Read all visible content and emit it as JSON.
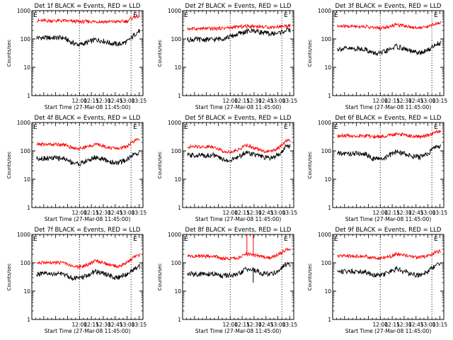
{
  "figure": {
    "background": "#ffffff",
    "event_color": "#000000",
    "lld_color": "#ff0000",
    "grid_style": "dotted vertical lines at 12:00 and 13:05 (plus 12:08 in upper-middle panels)"
  },
  "chart_data": [
    {
      "type": "line",
      "title": "Det 1f BLACK = Events, RED = LLD",
      "ylabel": "Counts/sec",
      "xlabel": "Start Time (27-Mar-08 11:45:00)",
      "corner_mark": "E",
      "yscale": "log",
      "ylim": [
        1,
        1000
      ],
      "xlim_minutes": [
        -50,
        90
      ],
      "x_ticks": [
        "12:00",
        "12:15",
        "12:30",
        "12:45",
        "13:00",
        "13:15"
      ],
      "y_ticks": [
        "1",
        "10",
        "100",
        "1000"
      ],
      "vlines": [
        "12:00",
        "13:05"
      ],
      "series": [
        {
          "name": "Events",
          "color": "#000000",
          "x": [
            "11:40",
            "11:50",
            "12:00",
            "12:10",
            "12:20",
            "12:30",
            "12:40",
            "12:50",
            "13:00",
            "13:05",
            "13:10",
            "13:15",
            "13:20"
          ],
          "values": [
            110,
            75,
            62,
            75,
            95,
            85,
            70,
            65,
            80,
            105,
            150,
            190,
            170
          ]
        },
        {
          "name": "LLD",
          "color": "#ff0000",
          "x": [
            "11:40",
            "11:50",
            "12:00",
            "12:10",
            "12:20",
            "12:30",
            "12:40",
            "12:50",
            "13:00",
            "13:05",
            "13:10",
            "13:15",
            "13:20"
          ],
          "values": [
            440,
            420,
            410,
            410,
            410,
            410,
            405,
            410,
            420,
            520,
            600,
            620,
            540
          ]
        }
      ]
    },
    {
      "type": "line",
      "title": "Det 2f BLACK = Events, RED = LLD",
      "ylabel": "Counts/sec",
      "xlabel": "Start Time (27-Mar-08 11:45:00)",
      "corner_mark": "E",
      "yscale": "log",
      "ylim": [
        1,
        1000
      ],
      "xlim_minutes": [
        -50,
        90
      ],
      "x_ticks": [
        "12:00",
        "12:15",
        "12:30",
        "12:45",
        "13:00",
        "13:15"
      ],
      "y_ticks": [
        "1",
        "10",
        "100",
        "1000"
      ],
      "vlines": [
        "12:00",
        "13:05"
      ],
      "series": [
        {
          "name": "Events",
          "color": "#000000",
          "x": [
            "11:40",
            "11:50",
            "12:00",
            "12:10",
            "12:20",
            "12:30",
            "12:40",
            "12:50",
            "13:00",
            "13:10",
            "13:20"
          ],
          "values": [
            95,
            105,
            120,
            150,
            180,
            200,
            170,
            150,
            160,
            200,
            210
          ]
        },
        {
          "name": "LLD",
          "color": "#ff0000",
          "x": [
            "11:40",
            "11:50",
            "12:00",
            "12:10",
            "12:20",
            "12:30",
            "12:40",
            "12:50",
            "13:00",
            "13:10",
            "13:20"
          ],
          "values": [
            230,
            240,
            250,
            270,
            280,
            285,
            270,
            260,
            270,
            290,
            300
          ]
        }
      ]
    },
    {
      "type": "line",
      "title": "Det 3f BLACK = Events, RED = LLD",
      "ylabel": "Counts/sec",
      "xlabel": "Start Time (27-Mar-08 11:45:00)",
      "corner_mark": "E",
      "yscale": "log",
      "ylim": [
        1,
        1000
      ],
      "xlim_minutes": [
        -50,
        90
      ],
      "x_ticks": [
        "12:00",
        "12:15",
        "12:30",
        "12:45",
        "13:00",
        "13:15"
      ],
      "y_ticks": [
        "1",
        "10",
        "100",
        "1000"
      ],
      "vlines": [
        "12:00",
        "13:05"
      ],
      "series": [
        {
          "name": "Events",
          "color": "#000000",
          "x": [
            "11:40",
            "11:50",
            "12:00",
            "12:10",
            "12:20",
            "12:30",
            "12:40",
            "12:50",
            "13:00",
            "13:10",
            "13:20"
          ],
          "values": [
            45,
            32,
            30,
            40,
            55,
            45,
            35,
            32,
            40,
            65,
            80
          ]
        },
        {
          "name": "LLD",
          "color": "#ff0000",
          "x": [
            "11:40",
            "11:50",
            "12:00",
            "12:10",
            "12:20",
            "12:30",
            "12:40",
            "12:50",
            "13:00",
            "13:10",
            "13:20"
          ],
          "values": [
            280,
            250,
            240,
            270,
            320,
            300,
            260,
            250,
            270,
            350,
            390
          ]
        }
      ]
    },
    {
      "type": "line",
      "title": "Det 4f BLACK = Events, RED = LLD",
      "ylabel": "Counts/sec",
      "xlabel": "Start Time (27-Mar-08 11:45:00)",
      "corner_mark": "E",
      "yscale": "log",
      "ylim": [
        1,
        1000
      ],
      "xlim_minutes": [
        -50,
        90
      ],
      "x_ticks": [
        "12:00",
        "12:15",
        "12:30",
        "12:45",
        "13:00",
        "13:15"
      ],
      "y_ticks": [
        "1",
        "10",
        "100",
        "1000"
      ],
      "vlines": [
        "12:00",
        "13:05"
      ],
      "series": [
        {
          "name": "Events",
          "color": "#000000",
          "x": [
            "11:40",
            "11:50",
            "12:00",
            "12:10",
            "12:20",
            "12:30",
            "12:40",
            "12:50",
            "13:00",
            "13:10",
            "13:20"
          ],
          "values": [
            55,
            40,
            35,
            45,
            60,
            50,
            40,
            38,
            50,
            80,
            95
          ]
        },
        {
          "name": "LLD",
          "color": "#ff0000",
          "x": [
            "11:40",
            "11:50",
            "12:00",
            "12:10",
            "12:20",
            "12:30",
            "12:40",
            "12:50",
            "13:00",
            "13:10",
            "13:20"
          ],
          "values": [
            170,
            130,
            120,
            140,
            170,
            150,
            125,
            120,
            150,
            230,
            290
          ]
        }
      ]
    },
    {
      "type": "line",
      "title": "Det 5f BLACK = Events, RED = LLD",
      "ylabel": "Counts/sec",
      "xlabel": "Start Time (27-Mar-08 11:45:00)",
      "corner_mark": "E",
      "yscale": "log",
      "ylim": [
        1,
        1000
      ],
      "xlim_minutes": [
        -50,
        90
      ],
      "x_ticks": [
        "12:00",
        "12:15",
        "12:30",
        "12:45",
        "13:00",
        "13:15"
      ],
      "y_ticks": [
        "1",
        "10",
        "100",
        "1000"
      ],
      "vlines": [
        "12:00",
        "13:05"
      ],
      "series": [
        {
          "name": "Events",
          "color": "#000000",
          "x": [
            "11:40",
            "11:50",
            "12:00",
            "12:10",
            "12:20",
            "12:30",
            "12:40",
            "12:50",
            "13:00",
            "13:10",
            "13:20"
          ],
          "values": [
            70,
            50,
            45,
            60,
            90,
            75,
            60,
            55,
            70,
            140,
            170
          ]
        },
        {
          "name": "LLD",
          "color": "#ff0000",
          "x": [
            "11:40",
            "11:50",
            "12:00",
            "12:10",
            "12:20",
            "12:30",
            "12:40",
            "12:50",
            "13:00",
            "13:10",
            "13:20"
          ],
          "values": [
            140,
            100,
            90,
            110,
            160,
            130,
            100,
            95,
            120,
            220,
            260
          ]
        }
      ]
    },
    {
      "type": "line",
      "title": "Det 6f BLACK = Events, RED = LLD",
      "ylabel": "Counts/sec",
      "xlabel": "Start Time (27-Mar-08 11:45:00)",
      "corner_mark": "E",
      "yscale": "log",
      "ylim": [
        1,
        1000
      ],
      "xlim_minutes": [
        -50,
        90
      ],
      "x_ticks": [
        "12:00",
        "12:15",
        "12:30",
        "12:45",
        "13:00",
        "13:15"
      ],
      "y_ticks": [
        "1",
        "10",
        "100",
        "1000"
      ],
      "vlines": [
        "12:00",
        "13:05"
      ],
      "series": [
        {
          "name": "Events",
          "color": "#000000",
          "x": [
            "11:40",
            "11:50",
            "12:00",
            "12:10",
            "12:20",
            "12:30",
            "12:40",
            "12:50",
            "13:00",
            "13:10",
            "13:20"
          ],
          "values": [
            80,
            55,
            50,
            65,
            95,
            80,
            65,
            60,
            80,
            140,
            150
          ]
        },
        {
          "name": "LLD",
          "color": "#ff0000",
          "x": [
            "11:40",
            "11:50",
            "12:00",
            "12:10",
            "12:20",
            "12:30",
            "12:40",
            "12:50",
            "13:00",
            "13:10",
            "13:20"
          ],
          "values": [
            340,
            320,
            320,
            340,
            400,
            370,
            330,
            320,
            350,
            460,
            530
          ]
        }
      ]
    },
    {
      "type": "line",
      "title": "Det 7f BLACK = Events, RED = LLD",
      "ylabel": "Counts/sec",
      "xlabel": "Start Time (27-Mar-08 11:45:00)",
      "corner_mark": "E",
      "yscale": "log",
      "ylim": [
        1,
        1000
      ],
      "xlim_minutes": [
        -50,
        90
      ],
      "x_ticks": [
        "12:00",
        "12:15",
        "12:30",
        "12:45",
        "13:00",
        "13:15"
      ],
      "y_ticks": [
        "1",
        "10",
        "100",
        "1000"
      ],
      "vlines": [
        "12:00",
        "13:05"
      ],
      "series": [
        {
          "name": "Events",
          "color": "#000000",
          "x": [
            "11:40",
            "11:50",
            "12:00",
            "12:10",
            "12:20",
            "12:30",
            "12:40",
            "12:50",
            "13:00",
            "13:10",
            "13:20"
          ],
          "values": [
            40,
            30,
            28,
            35,
            50,
            42,
            33,
            30,
            40,
            65,
            80
          ]
        },
        {
          "name": "LLD",
          "color": "#ff0000",
          "x": [
            "11:40",
            "11:50",
            "12:00",
            "12:10",
            "12:20",
            "12:30",
            "12:40",
            "12:50",
            "13:00",
            "13:10",
            "13:20"
          ],
          "values": [
            100,
            75,
            70,
            85,
            120,
            100,
            80,
            75,
            100,
            170,
            210
          ]
        }
      ]
    },
    {
      "type": "line",
      "title": "Det 8f BLACK = Events, RED = LLD",
      "ylabel": "Counts/sec",
      "xlabel": "Start Time (27-Mar-08 11:45:00)",
      "corner_mark": "E",
      "yscale": "log",
      "ylim": [
        1,
        1000
      ],
      "xlim_minutes": [
        -50,
        90
      ],
      "x_ticks": [
        "12:00",
        "12:15",
        "12:30",
        "12:45",
        "13:00",
        "13:15"
      ],
      "y_ticks": [
        "1",
        "10",
        "100",
        "1000"
      ],
      "vlines": [
        "12:00",
        "13:05"
      ],
      "series": [
        {
          "name": "Events",
          "color": "#000000",
          "x": [
            "11:40",
            "11:50",
            "12:00",
            "12:10",
            "12:20",
            "12:30",
            "12:40",
            "12:50",
            "13:00",
            "13:10",
            "13:20"
          ],
          "values": [
            40,
            35,
            35,
            38,
            60,
            55,
            42,
            40,
            50,
            85,
            95
          ]
        },
        {
          "name": "LLD",
          "color": "#ff0000",
          "x": [
            "11:40",
            "11:50",
            "12:00",
            "12:10",
            "12:20",
            "12:30",
            "12:40",
            "12:50",
            "13:00",
            "13:10",
            "13:20"
          ],
          "values": [
            170,
            140,
            140,
            150,
            200,
            190,
            160,
            150,
            190,
            280,
            300
          ]
        }
      ],
      "spikes": [
        {
          "series": "LLD",
          "x": "12:21",
          "value": 1000
        },
        {
          "series": "LLD",
          "x": "12:29",
          "value": 1000
        },
        {
          "series": "Events",
          "x": "12:29",
          "value": 20
        }
      ]
    },
    {
      "type": "line",
      "title": "Det 9f BLACK = Events, RED = LLD",
      "ylabel": "Counts/sec",
      "xlabel": "Start Time (27-Mar-08 11:45:00)",
      "corner_mark": "E",
      "yscale": "log",
      "ylim": [
        1,
        1000
      ],
      "xlim_minutes": [
        -50,
        90
      ],
      "x_ticks": [
        "12:00",
        "12:15",
        "12:30",
        "12:45",
        "13:00",
        "13:15"
      ],
      "y_ticks": [
        "1",
        "10",
        "100",
        "1000"
      ],
      "vlines": [
        "12:00",
        "13:05"
      ],
      "series": [
        {
          "name": "Events",
          "color": "#000000",
          "x": [
            "11:40",
            "11:50",
            "12:00",
            "12:10",
            "12:20",
            "12:30",
            "12:40",
            "12:50",
            "13:00",
            "13:10",
            "13:20"
          ],
          "values": [
            50,
            38,
            35,
            45,
            60,
            50,
            40,
            37,
            50,
            80,
            95
          ]
        },
        {
          "name": "LLD",
          "color": "#ff0000",
          "x": [
            "11:40",
            "11:50",
            "12:00",
            "12:10",
            "12:20",
            "12:30",
            "12:40",
            "12:50",
            "13:00",
            "13:10",
            "13:20"
          ],
          "values": [
            170,
            150,
            150,
            160,
            200,
            185,
            160,
            155,
            175,
            240,
            270
          ]
        }
      ]
    }
  ]
}
